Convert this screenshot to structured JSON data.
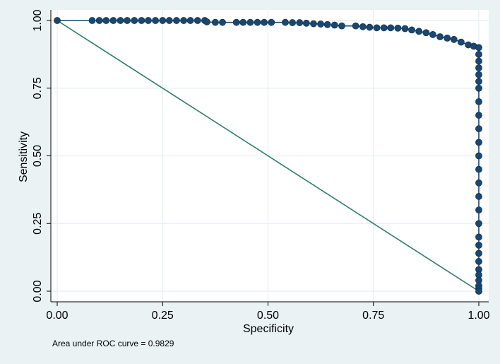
{
  "chart_data": {
    "type": "scatter",
    "xlabel": "Specificity",
    "ylabel": "Sensitivity",
    "note": "Area under ROC curve = 0.9829",
    "xlim": [
      0,
      1
    ],
    "ylim": [
      0,
      1
    ],
    "x_ticks": [
      "0.00",
      "0.25",
      "0.50",
      "0.75",
      "1.00"
    ],
    "y_ticks": [
      "0.00",
      "0.25",
      "0.50",
      "0.75",
      "1.00"
    ],
    "grid": true,
    "colors": {
      "background": "#eaf2f3",
      "plot_background": "#ffffff",
      "grid": "#eaf2f3",
      "roc_series": "#1a476f",
      "reference_line": "#2e7d6b"
    },
    "series": [
      {
        "x": [
          0,
          0.083,
          0.1,
          0.116,
          0.133,
          0.15,
          0.166,
          0.183,
          0.2,
          0.216,
          0.233,
          0.25,
          0.266,
          0.283,
          0.3,
          0.316,
          0.333,
          0.35,
          0.355,
          0.375,
          0.392,
          0.425,
          0.441,
          0.458,
          0.475,
          0.491,
          0.508,
          0.541,
          0.558,
          0.575,
          0.591,
          0.608,
          0.625,
          0.641,
          0.658,
          0.675,
          0.708,
          0.725,
          0.741,
          0.758,
          0.775,
          0.791,
          0.808,
          0.825,
          0.841,
          0.858,
          0.875,
          0.891,
          0.908,
          0.925,
          0.941,
          0.958,
          0.975,
          0.988,
          1.0,
          1.0,
          1.0,
          1.0,
          1.0,
          1.0,
          1.0,
          1.0,
          1.0,
          1.0,
          1.0,
          1.0,
          1.0,
          1.0,
          1.0,
          1.0,
          1.0,
          1.0,
          1.0,
          1.0,
          1.0,
          1.0,
          1.0,
          1.0,
          1.0,
          1.0,
          1.0
        ],
        "y": [
          1.0,
          1.0,
          1.0,
          1.0,
          1.0,
          1.0,
          1.0,
          1.0,
          1.0,
          1.0,
          1.0,
          1.0,
          1.0,
          1.0,
          1.0,
          1.0,
          1.0,
          1.0,
          0.995,
          0.993,
          0.993,
          0.993,
          0.993,
          0.993,
          0.993,
          0.993,
          0.993,
          0.993,
          0.992,
          0.992,
          0.99,
          0.988,
          0.987,
          0.985,
          0.983,
          0.98,
          0.98,
          0.977,
          0.975,
          0.973,
          0.973,
          0.973,
          0.972,
          0.97,
          0.965,
          0.96,
          0.955,
          0.948,
          0.94,
          0.935,
          0.93,
          0.92,
          0.91,
          0.905,
          0.9,
          0.875,
          0.85,
          0.825,
          0.8,
          0.775,
          0.75,
          0.7,
          0.65,
          0.6,
          0.55,
          0.5,
          0.45,
          0.4,
          0.35,
          0.3,
          0.25,
          0.2,
          0.17,
          0.14,
          0.11,
          0.08,
          0.06,
          0.04,
          0.02,
          0.01,
          0.0
        ]
      },
      {
        "x": [
          0,
          1
        ],
        "y": [
          1,
          0
        ]
      }
    ]
  }
}
